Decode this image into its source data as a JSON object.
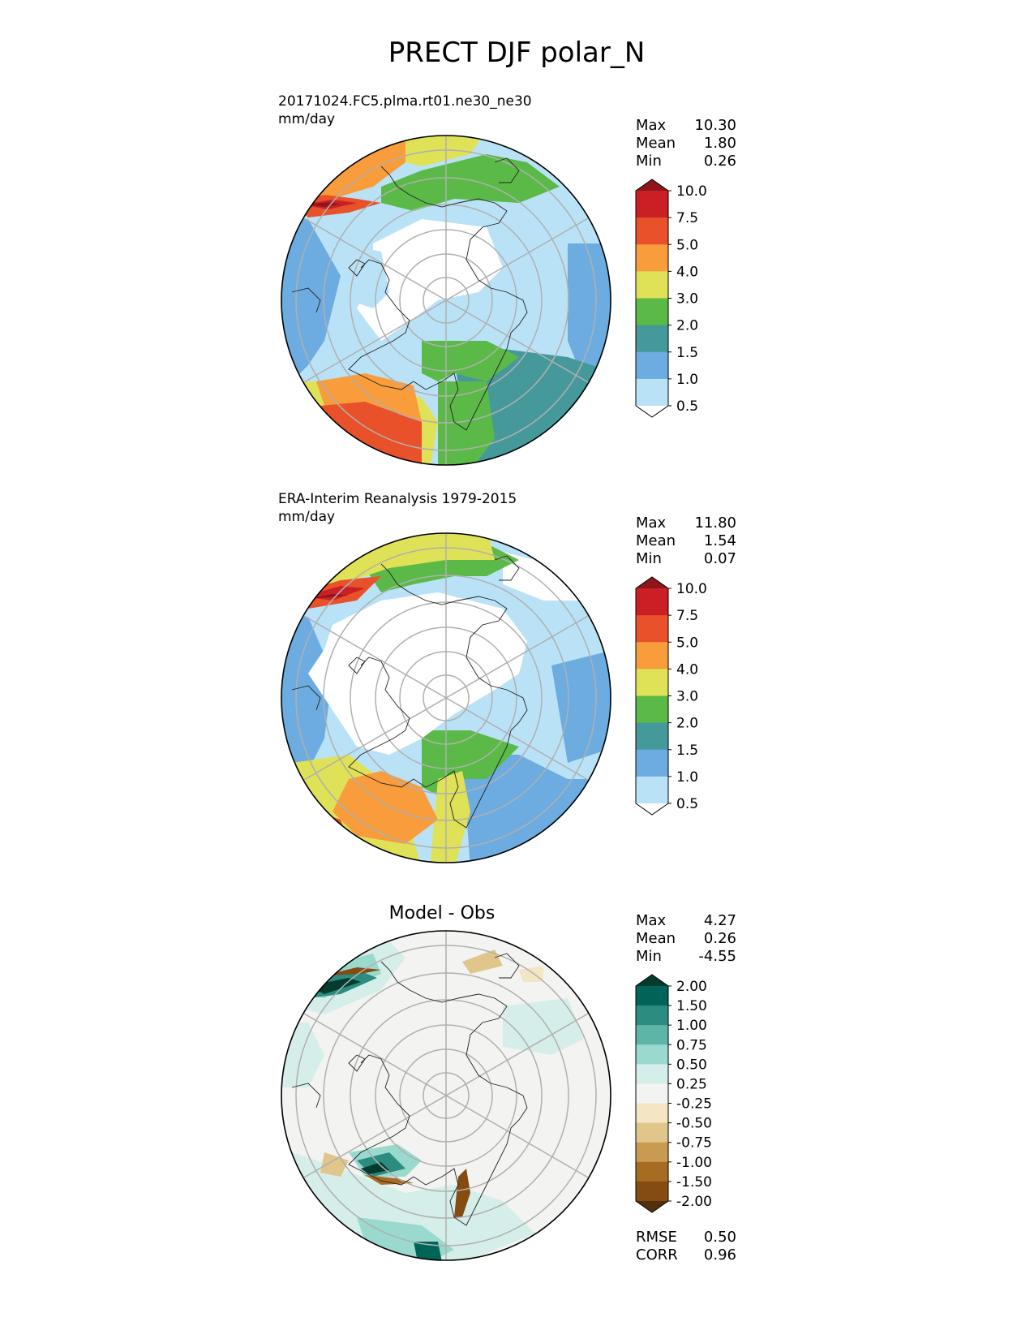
{
  "figure": {
    "title": "PRECT DJF polar_N"
  },
  "colors": {
    "precip": [
      "#ffffff",
      "#b9e2f7",
      "#6cace0",
      "#46999b",
      "#5bba47",
      "#dfe256",
      "#f89c3c",
      "#e9512a",
      "#cb1f26",
      "#8e1519"
    ],
    "diff": [
      "#54300a",
      "#844c10",
      "#a66c22",
      "#c99a51",
      "#e0c68b",
      "#f4e5c4",
      "#f3f3f1",
      "#d5eee9",
      "#9ad9cd",
      "#5eb4a7",
      "#2b8c7f",
      "#006558",
      "#033c2f"
    ]
  },
  "panels": [
    {
      "id": "test",
      "title": "20171024.FC5.plma.rt01.ne30_ne30",
      "units": "mm/day",
      "stats": [
        {
          "label": "Max",
          "value": "10.30"
        },
        {
          "label": "Mean",
          "value": "1.80"
        },
        {
          "label": "Min",
          "value": "0.26"
        }
      ],
      "colorbar_ticks": [
        "10.0",
        "7.5",
        "5.0",
        "4.0",
        "3.0",
        "2.0",
        "1.5",
        "1.0",
        "0.5"
      ]
    },
    {
      "id": "reference",
      "title": "ERA-Interim Reanalysis 1979-2015",
      "units": "mm/day",
      "stats": [
        {
          "label": "Max",
          "value": "11.80"
        },
        {
          "label": "Mean",
          "value": "1.54"
        },
        {
          "label": "Min",
          "value": "0.07"
        }
      ],
      "colorbar_ticks": [
        "10.0",
        "7.5",
        "5.0",
        "4.0",
        "3.0",
        "2.0",
        "1.5",
        "1.0",
        "0.5"
      ]
    },
    {
      "id": "diff",
      "title": "Model - Obs",
      "units": "",
      "stats": [
        {
          "label": "Max",
          "value": "4.27"
        },
        {
          "label": "Mean",
          "value": "0.26"
        },
        {
          "label": "Min",
          "value": "-4.55"
        }
      ],
      "colorbar_ticks": [
        "2.00",
        "1.50",
        "1.00",
        "0.75",
        "0.50",
        "0.25",
        "-0.25",
        "-0.50",
        "-0.75",
        "-1.00",
        "-1.50",
        "-2.00"
      ],
      "metrics": [
        {
          "label": "RMSE",
          "value": "0.50"
        },
        {
          "label": "CORR",
          "value": "0.96"
        }
      ]
    }
  ],
  "chart_data": [
    {
      "type": "heatmap",
      "title": "20171024.FC5.plma.rt01.ne30_ne30",
      "projection": "north polar stereographic",
      "units": "mm/day",
      "levels": [
        0.5,
        1.0,
        1.5,
        2.0,
        3.0,
        4.0,
        5.0,
        7.5,
        10.0
      ],
      "stats": {
        "max": 10.3,
        "mean": 1.8,
        "min": 0.26
      }
    },
    {
      "type": "heatmap",
      "title": "ERA-Interim Reanalysis 1979-2015",
      "projection": "north polar stereographic",
      "units": "mm/day",
      "levels": [
        0.5,
        1.0,
        1.5,
        2.0,
        3.0,
        4.0,
        5.0,
        7.5,
        10.0
      ],
      "stats": {
        "max": 11.8,
        "mean": 1.54,
        "min": 0.07
      }
    },
    {
      "type": "heatmap",
      "title": "Model - Obs",
      "projection": "north polar stereographic",
      "levels": [
        -2.0,
        -1.5,
        -1.0,
        -0.75,
        -0.5,
        -0.25,
        0.25,
        0.5,
        0.75,
        1.0,
        1.5,
        2.0
      ],
      "stats": {
        "max": 4.27,
        "mean": 0.26,
        "min": -4.55,
        "rmse": 0.5,
        "corr": 0.96
      }
    }
  ]
}
